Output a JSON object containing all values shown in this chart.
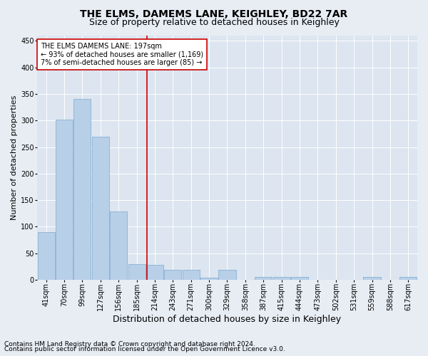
{
  "title": "THE ELMS, DAMEMS LANE, KEIGHLEY, BD22 7AR",
  "subtitle": "Size of property relative to detached houses in Keighley",
  "xlabel": "Distribution of detached houses by size in Keighley",
  "ylabel": "Number of detached properties",
  "footnote1": "Contains HM Land Registry data © Crown copyright and database right 2024.",
  "footnote2": "Contains public sector information licensed under the Open Government Licence v3.0.",
  "categories": [
    "41sqm",
    "70sqm",
    "99sqm",
    "127sqm",
    "156sqm",
    "185sqm",
    "214sqm",
    "243sqm",
    "271sqm",
    "300sqm",
    "329sqm",
    "358sqm",
    "387sqm",
    "415sqm",
    "444sqm",
    "473sqm",
    "502sqm",
    "531sqm",
    "559sqm",
    "588sqm",
    "617sqm"
  ],
  "values": [
    90,
    302,
    341,
    270,
    128,
    30,
    28,
    18,
    18,
    4,
    18,
    0,
    5,
    5,
    5,
    0,
    0,
    0,
    5,
    0,
    5
  ],
  "bar_color": "#b8cfe8",
  "bar_edge_color": "#7aaacf",
  "vline_x": 5.55,
  "vline_color": "#cc0000",
  "annotation_line1": "THE ELMS DAMEMS LANE: 197sqm",
  "annotation_line2": "← 93% of detached houses are smaller (1,169)",
  "annotation_line3": "7% of semi-detached houses are larger (85) →",
  "annotation_box_color": "#ffffff",
  "annotation_box_edge": "#cc0000",
  "ylim": [
    0,
    460
  ],
  "yticks": [
    0,
    50,
    100,
    150,
    200,
    250,
    300,
    350,
    400,
    450
  ],
  "background_color": "#e8edf4",
  "plot_bg_color": "#dce5f0",
  "grid_color": "#ffffff",
  "title_fontsize": 10,
  "subtitle_fontsize": 9,
  "xlabel_fontsize": 9,
  "ylabel_fontsize": 8,
  "tick_fontsize": 7,
  "annotation_fontsize": 7,
  "footnote_fontsize": 6.5
}
